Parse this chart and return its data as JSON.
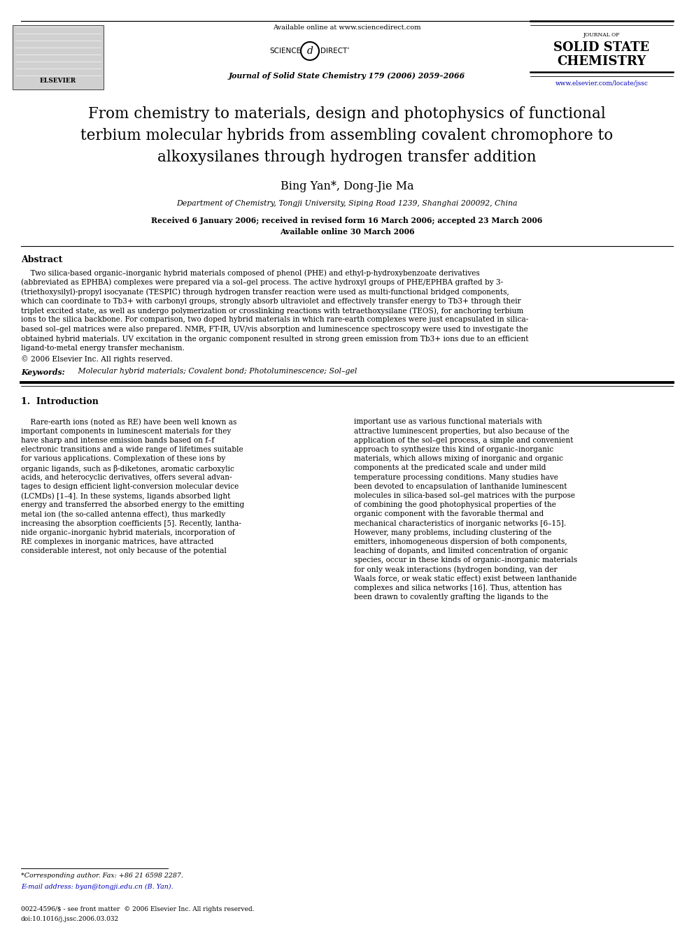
{
  "bg_color": "#ffffff",
  "available_online": "Available online at www.sciencedirect.com",
  "journal_ref": "Journal of Solid State Chemistry 179 (2006) 2059–2066",
  "journal_name1": "JOURNAL OF",
  "journal_name2": "SOLID STATE",
  "journal_name3": "CHEMISTRY",
  "url": "www.elsevier.com/locate/jssc",
  "title_line1": "From chemistry to materials, design and photophysics of functional",
  "title_line2": "terbium molecular hybrids from assembling covalent chromophore to",
  "title_line3": "alkoxysilanes through hydrogen transfer addition",
  "authors": "Bing Yan*, Dong-Jie Ma",
  "affiliation": "Department of Chemistry, Tongji University, Siping Road 1239, Shanghai 200092, China",
  "received": "Received 6 January 2006; received in revised form 16 March 2006; accepted 23 March 2006",
  "available": "Available online 30 March 2006",
  "abstract_label": "Abstract",
  "abstract_lines": [
    "    Two silica-based organic–inorganic hybrid materials composed of phenol (PHE) and ethyl-p-hydroxybenzoate derivatives",
    "(abbreviated as EPHBA) complexes were prepared via a sol–gel process. The active hydroxyl groups of PHE/EPHBA grafted by 3-",
    "(triethoxysilyl)-propyl isocyanate (TESPIC) through hydrogen transfer reaction were used as multi-functional bridged components,",
    "which can coordinate to Tb3+ with carbonyl groups, strongly absorb ultraviolet and effectively transfer energy to Tb3+ through their",
    "triplet excited state, as well as undergo polymerization or crosslinking reactions with tetraethoxysilane (TEOS), for anchoring terbium",
    "ions to the silica backbone. For comparison, two doped hybrid materials in which rare-earth complexes were just encapsulated in silica-",
    "based sol–gel matrices were also prepared. NMR, FT-IR, UV/vis absorption and luminescence spectroscopy were used to investigate the",
    "obtained hybrid materials. UV excitation in the organic component resulted in strong green emission from Tb3+ ions due to an efficient",
    "ligand-to-metal energy transfer mechanism."
  ],
  "copyright": "© 2006 Elsevier Inc. All rights reserved.",
  "keywords_bold": "Keywords:",
  "keywords_text": " Molecular hybrid materials; Covalent bond; Photoluminescence; Sol–gel",
  "sec1_head": "1.  Introduction",
  "sec1_col1_lines": [
    "    Rare-earth ions (noted as RE) have been well known as",
    "important components in luminescent materials for they",
    "have sharp and intense emission bands based on f–f",
    "electronic transitions and a wide range of lifetimes suitable",
    "for various applications. Complexation of these ions by",
    "organic ligands, such as β-diketones, aromatic carboxylic",
    "acids, and heterocyclic derivatives, offers several advan-",
    "tages to design efficient light-conversion molecular device",
    "(LCMDs) [1–4]. In these systems, ligands absorbed light",
    "energy and transferred the absorbed energy to the emitting",
    "metal ion (the so-called antenna effect), thus markedly",
    "increasing the absorption coefficients [5]. Recently, lantha-",
    "nide organic–inorganic hybrid materials, incorporation of",
    "RE complexes in inorganic matrices, have attracted",
    "considerable interest, not only because of the potential"
  ],
  "sec1_col2_lines": [
    "important use as various functional materials with",
    "attractive luminescent properties, but also because of the",
    "application of the sol–gel process, a simple and convenient",
    "approach to synthesize this kind of organic–inorganic",
    "materials, which allows mixing of inorganic and organic",
    "components at the predicated scale and under mild",
    "temperature processing conditions. Many studies have",
    "been devoted to encapsulation of lanthanide luminescent",
    "molecules in silica-based sol–gel matrices with the purpose",
    "of combining the good photophysical properties of the",
    "organic component with the favorable thermal and",
    "mechanical characteristics of inorganic networks [6–15].",
    "However, many problems, including clustering of the",
    "emitters, inhomogeneous dispersion of both components,",
    "leaching of dopants, and limited concentration of organic",
    "species, occur in these kinds of organic–inorganic materials",
    "for only weak interactions (hydrogen bonding, van der",
    "Waals force, or weak static effect) exist between lanthanide",
    "complexes and silica networks [16]. Thus, attention has",
    "been drawn to covalently grafting the ligands to the"
  ],
  "footnote1": "*Corresponding author. Fax: +86 21 6598 2287.",
  "footnote2": "E-mail address: byan@tongji.edu.cn (B. Yan).",
  "footer1": "0022-4596/$ - see front matter  © 2006 Elsevier Inc. All rights reserved.",
  "footer2": "doi:10.1016/j.jssc.2006.03.032"
}
